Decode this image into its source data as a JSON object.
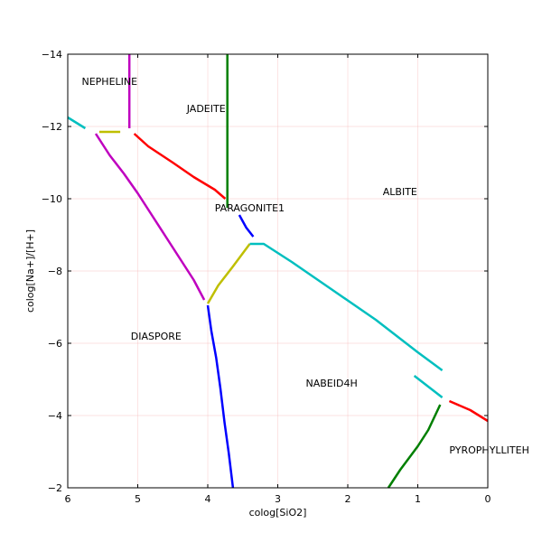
{
  "chart_data": {
    "type": "line",
    "title": "",
    "xlabel": "colog[SiO2]",
    "ylabel": "colog[Na+]/[H+]",
    "xlim": [
      6,
      0
    ],
    "ylim": [
      -2,
      -14
    ],
    "x_ticks": [
      6,
      5,
      4,
      3,
      2,
      1,
      0
    ],
    "x_tick_labels": [
      "6",
      "5",
      "4",
      "3",
      "2",
      "1",
      "0"
    ],
    "y_ticks": [
      -14,
      -12,
      -10,
      -8,
      -6,
      -4,
      -2
    ],
    "y_tick_labels": [
      "−14",
      "−12",
      "−10",
      "−8",
      "−6",
      "−4",
      "−2"
    ],
    "grid": true,
    "fields": [
      {
        "label": "NEPHELINE",
        "x": 5.8,
        "y": -13.25
      },
      {
        "label": "JADEITE",
        "x": 4.3,
        "y": -12.5
      },
      {
        "label": "ALBITE",
        "x": 1.5,
        "y": -10.2
      },
      {
        "label": "PARAGONITE1",
        "x": 3.9,
        "y": -9.75
      },
      {
        "label": "DIASPORE",
        "x": 5.1,
        "y": -6.2
      },
      {
        "label": "NABEID4H",
        "x": 2.6,
        "y": -4.9
      },
      {
        "label": "PYROPHYLLITEH",
        "x": 0.55,
        "y": -3.05
      }
    ],
    "series": [
      {
        "color": "#00bfbf",
        "points": [
          [
            6,
            -12.25
          ],
          [
            5.75,
            -11.95
          ]
        ]
      },
      {
        "color": "#bfbf00",
        "points": [
          [
            5.55,
            -11.85
          ],
          [
            5.25,
            -11.85
          ]
        ]
      },
      {
        "color": "#bf00bf",
        "points": [
          [
            5.12,
            -14
          ],
          [
            5.12,
            -11.95
          ]
        ]
      },
      {
        "color": "#ff0000",
        "points": [
          [
            5.05,
            -11.8
          ],
          [
            4.85,
            -11.45
          ],
          [
            4.5,
            -11.0
          ],
          [
            4.2,
            -10.6
          ],
          [
            3.9,
            -10.25
          ],
          [
            3.75,
            -10.0
          ]
        ]
      },
      {
        "color": "#007f00",
        "points": [
          [
            3.72,
            -14
          ],
          [
            3.72,
            -9.75
          ]
        ]
      },
      {
        "color": "#bf00bf",
        "points": [
          [
            5.6,
            -11.8
          ],
          [
            5.4,
            -11.2
          ],
          [
            5.2,
            -10.7
          ],
          [
            5.0,
            -10.15
          ],
          [
            4.8,
            -9.55
          ],
          [
            4.6,
            -8.95
          ],
          [
            4.4,
            -8.35
          ],
          [
            4.2,
            -7.75
          ],
          [
            4.05,
            -7.2
          ]
        ]
      },
      {
        "color": "#0000ff",
        "points": [
          [
            3.55,
            -9.55
          ],
          [
            3.45,
            -9.2
          ],
          [
            3.35,
            -8.95
          ]
        ]
      },
      {
        "color": "#bfbf00",
        "points": [
          [
            4.0,
            -7.1
          ],
          [
            3.85,
            -7.6
          ],
          [
            3.65,
            -8.1
          ],
          [
            3.4,
            -8.75
          ]
        ]
      },
      {
        "color": "#00bfbf",
        "points": [
          [
            3.4,
            -8.75
          ],
          [
            3.2,
            -8.75
          ],
          [
            2.8,
            -8.25
          ],
          [
            2.2,
            -7.45
          ],
          [
            1.6,
            -6.65
          ],
          [
            1.0,
            -5.75
          ],
          [
            0.65,
            -5.25
          ]
        ]
      },
      {
        "color": "#00bfbf",
        "points": [
          [
            1.05,
            -5.1
          ],
          [
            0.65,
            -4.5
          ]
        ]
      },
      {
        "color": "#ff0000",
        "points": [
          [
            0.55,
            -4.4
          ],
          [
            0.25,
            -4.15
          ],
          [
            0,
            -3.85
          ]
        ]
      },
      {
        "color": "#0000ff",
        "points": [
          [
            4.0,
            -7.05
          ],
          [
            3.95,
            -6.35
          ],
          [
            3.88,
            -5.6
          ],
          [
            3.82,
            -4.75
          ],
          [
            3.76,
            -3.8
          ],
          [
            3.7,
            -2.95
          ],
          [
            3.64,
            -2.0
          ]
        ]
      },
      {
        "color": "#007f00",
        "points": [
          [
            1.42,
            -2.0
          ],
          [
            1.25,
            -2.5
          ],
          [
            1.0,
            -3.15
          ],
          [
            0.85,
            -3.6
          ],
          [
            0.68,
            -4.3
          ]
        ]
      }
    ]
  }
}
